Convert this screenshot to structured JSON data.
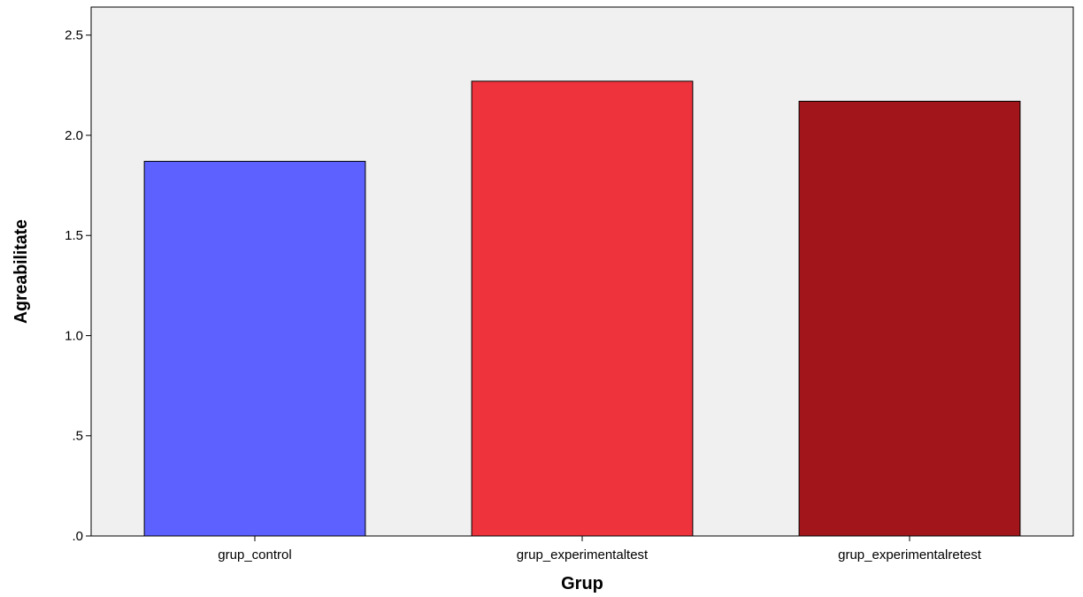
{
  "chart_data": {
    "type": "bar",
    "categories": [
      "grup_control",
      "grup_experimentaltest",
      "grup_experimentalretest"
    ],
    "values": [
      1.87,
      2.27,
      2.17
    ],
    "bar_colors": [
      "#5c61ff",
      "#ef333c",
      "#a2161b"
    ],
    "xlabel": "Grup",
    "ylabel": "Agreabilitate",
    "ylim": [
      0,
      2.64
    ],
    "yticks": [
      0,
      0.5,
      1.0,
      1.5,
      2.0,
      2.5
    ],
    "ytick_labels": [
      ".0",
      ".5",
      "1.0",
      "1.5",
      "2.0",
      "2.5"
    ],
    "plot_background": "#f0f0f0",
    "grid": false
  }
}
